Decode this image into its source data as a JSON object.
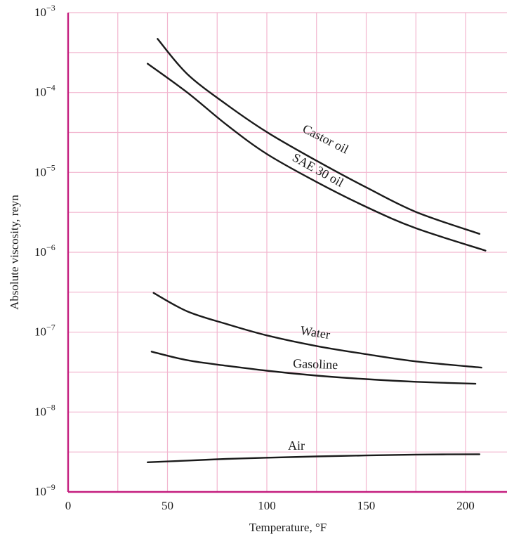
{
  "chart_data": {
    "type": "line",
    "xlabel": "Temperature, °F",
    "ylabel": "Absolute viscosity, reyn",
    "xlim": [
      0,
      220
    ],
    "ylim": [
      1e-09,
      0.001
    ],
    "yscale": "log",
    "grid": true,
    "x_ticks": [
      {
        "value": 0,
        "label": "0"
      },
      {
        "value": 50,
        "label": "50"
      },
      {
        "value": 100,
        "label": "100"
      },
      {
        "value": 150,
        "label": "150"
      },
      {
        "value": 200,
        "label": "200"
      }
    ],
    "y_ticks": [
      {
        "value": 1e-09,
        "base": "10",
        "exp": "−9"
      },
      {
        "value": 1e-08,
        "base": "10",
        "exp": "−8"
      },
      {
        "value": 1e-07,
        "base": "10",
        "exp": "−7"
      },
      {
        "value": 1e-06,
        "base": "10",
        "exp": "−6"
      },
      {
        "value": 1e-05,
        "base": "10",
        "exp": "−5"
      },
      {
        "value": 0.0001,
        "base": "10",
        "exp": "−4"
      },
      {
        "value": 0.001,
        "base": "10",
        "exp": "−3"
      }
    ],
    "series": [
      {
        "name": "Castor oil",
        "x": [
          45,
          60,
          80,
          100,
          125,
          150,
          175,
          207
        ],
        "y": [
          0.00047,
          0.00017,
          7e-05,
          3.2e-05,
          1.4e-05,
          6.5e-06,
          3.2e-06,
          1.7e-06
        ]
      },
      {
        "name": "SAE 30 oil",
        "x": [
          40,
          60,
          80,
          100,
          125,
          150,
          175,
          210
        ],
        "y": [
          0.00023,
          0.0001,
          3.9e-05,
          1.7e-05,
          7.6e-06,
          3.7e-06,
          2e-06,
          1.05e-06
        ]
      },
      {
        "name": "Water",
        "x": [
          43,
          60,
          80,
          100,
          125,
          150,
          175,
          208
        ],
        "y": [
          3.1e-07,
          1.82e-07,
          1.26e-07,
          9.1e-08,
          6.7e-08,
          5.3e-08,
          4.3e-08,
          3.6e-08
        ]
      },
      {
        "name": "Gasoline",
        "x": [
          42,
          60,
          80,
          100,
          125,
          150,
          175,
          205
        ],
        "y": [
          5.7e-08,
          4.45e-08,
          3.79e-08,
          3.29e-08,
          2.86e-08,
          2.58e-08,
          2.39e-08,
          2.26e-08
        ]
      },
      {
        "name": "Air",
        "x": [
          40,
          60,
          80,
          100,
          125,
          150,
          175,
          207
        ],
        "y": [
          2.35e-09,
          2.47e-09,
          2.59e-09,
          2.68e-09,
          2.78e-09,
          2.86e-09,
          2.93e-09,
          2.96e-09
        ]
      }
    ],
    "annotations": [
      {
        "text": "Castor oil",
        "series": "Castor oil"
      },
      {
        "text": "SAE 30 oil",
        "series": "SAE 30 oil"
      },
      {
        "text": "Water",
        "series": "Water"
      },
      {
        "text": "Gasoline",
        "series": "Gasoline"
      },
      {
        "text": "Air",
        "series": "Air"
      }
    ],
    "colors": {
      "axis": "#c41e7f",
      "grid": "#f2b6cf",
      "line": "#1a1a1a"
    }
  }
}
